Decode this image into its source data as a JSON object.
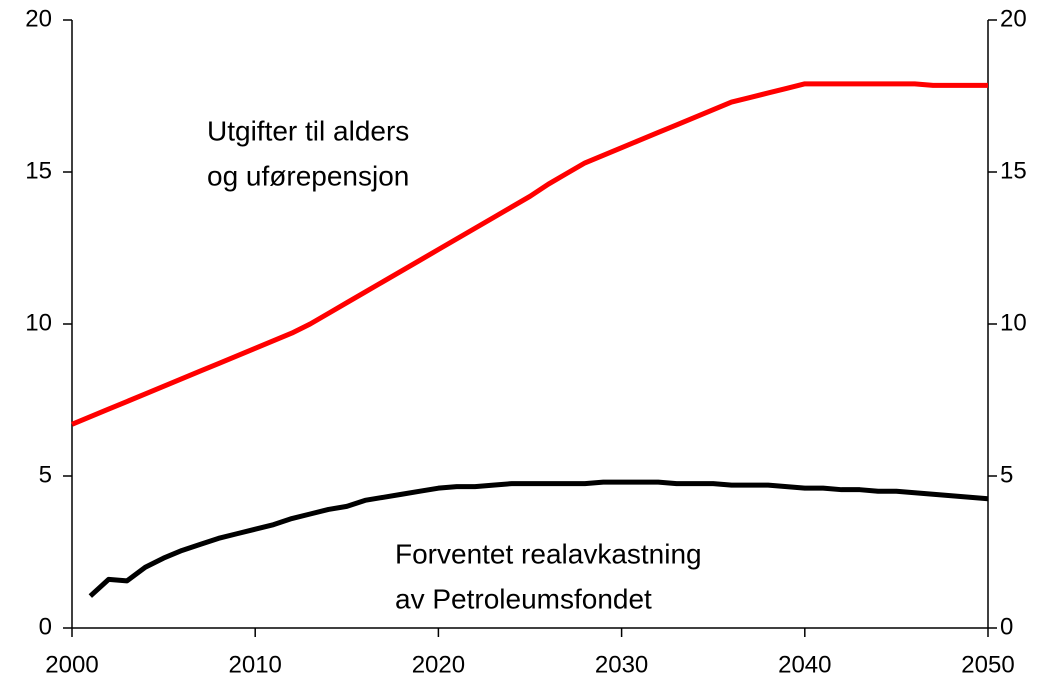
{
  "chart_data": {
    "type": "line",
    "x": [
      2000,
      2001,
      2002,
      2003,
      2004,
      2005,
      2006,
      2007,
      2008,
      2009,
      2010,
      2011,
      2012,
      2013,
      2014,
      2015,
      2016,
      2017,
      2018,
      2019,
      2020,
      2021,
      2022,
      2023,
      2024,
      2025,
      2026,
      2027,
      2028,
      2029,
      2030,
      2031,
      2032,
      2033,
      2034,
      2035,
      2036,
      2037,
      2038,
      2039,
      2040,
      2041,
      2042,
      2043,
      2044,
      2045,
      2046,
      2047,
      2048,
      2049,
      2050
    ],
    "series": [
      {
        "color": "#ff0000",
        "values": [
          6.7,
          6.95,
          7.2,
          7.45,
          7.7,
          7.95,
          8.2,
          8.45,
          8.7,
          8.95,
          9.2,
          9.45,
          9.7,
          10.0,
          10.35,
          10.7,
          11.05,
          11.4,
          11.75,
          12.1,
          12.45,
          12.8,
          13.15,
          13.5,
          13.85,
          14.2,
          14.6,
          14.95,
          15.3,
          15.55,
          15.8,
          16.05,
          16.3,
          16.55,
          16.8,
          17.05,
          17.3,
          17.45,
          17.6,
          17.75,
          17.9,
          17.9,
          17.9,
          17.9,
          17.9,
          17.9,
          17.9,
          17.85,
          17.85,
          17.85,
          17.85
        ]
      },
      {
        "color": "#000000",
        "values": [
          null,
          1.05,
          1.6,
          1.55,
          2.0,
          2.3,
          2.55,
          2.75,
          2.95,
          3.1,
          3.25,
          3.4,
          3.6,
          3.75,
          3.9,
          4.0,
          4.2,
          4.3,
          4.4,
          4.5,
          4.6,
          4.65,
          4.65,
          4.7,
          4.75,
          4.75,
          4.75,
          4.75,
          4.75,
          4.8,
          4.8,
          4.8,
          4.8,
          4.75,
          4.75,
          4.75,
          4.7,
          4.7,
          4.7,
          4.65,
          4.6,
          4.6,
          4.55,
          4.55,
          4.5,
          4.5,
          4.45,
          4.4,
          4.35,
          4.3,
          4.25
        ]
      }
    ],
    "annotations": [
      [
        "Utgifter til alders",
        "og uførepensjon"
      ],
      [
        "Forventet realavkastning",
        "av Petroleumsfondet"
      ]
    ],
    "xlim": [
      2000,
      2050
    ],
    "xticks": [
      2000,
      2010,
      2020,
      2030,
      2040,
      2050
    ],
    "ylim": [
      0,
      20
    ],
    "yticks": [
      0,
      5,
      10,
      15,
      20
    ],
    "y2lim": [
      0,
      20
    ],
    "y2ticks": [
      0,
      5,
      10,
      15,
      20
    ]
  }
}
